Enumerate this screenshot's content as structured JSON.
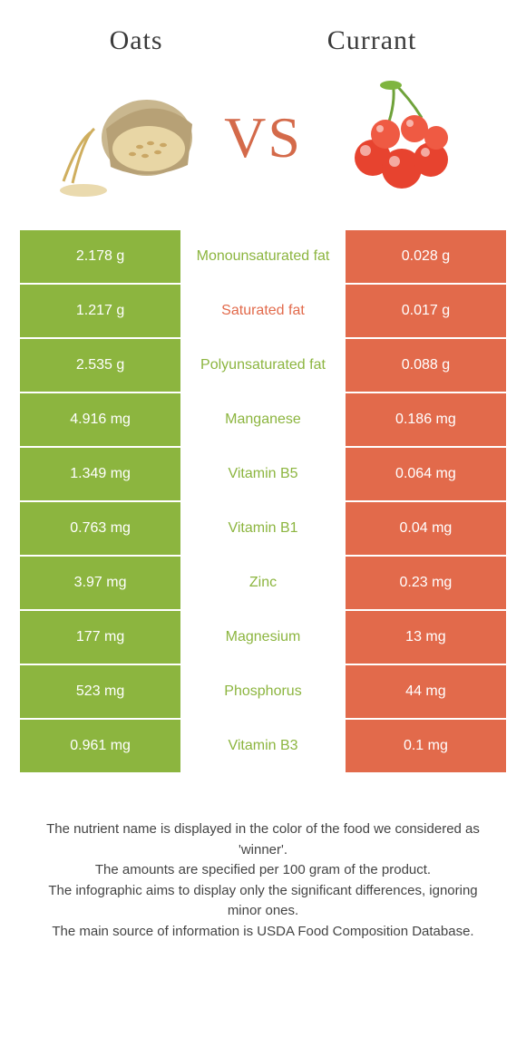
{
  "left_food": {
    "name": "Oats",
    "color": "#8cb53f"
  },
  "right_food": {
    "name": "Currant",
    "color": "#e26a4b"
  },
  "vs_label": "VS",
  "vs_color": "#d46a4a",
  "mid_bg": "#ffffff",
  "rows": [
    {
      "left": "2.178 g",
      "label": "Monounsaturated fat",
      "right": "0.028 g",
      "winner": "left"
    },
    {
      "left": "1.217 g",
      "label": "Saturated fat",
      "right": "0.017 g",
      "winner": "right"
    },
    {
      "left": "2.535 g",
      "label": "Polyunsaturated fat",
      "right": "0.088 g",
      "winner": "left"
    },
    {
      "left": "4.916 mg",
      "label": "Manganese",
      "right": "0.186 mg",
      "winner": "left"
    },
    {
      "left": "1.349 mg",
      "label": "Vitamin B5",
      "right": "0.064 mg",
      "winner": "left"
    },
    {
      "left": "0.763 mg",
      "label": "Vitamin B1",
      "right": "0.04 mg",
      "winner": "left"
    },
    {
      "left": "3.97 mg",
      "label": "Zinc",
      "right": "0.23 mg",
      "winner": "left"
    },
    {
      "left": "177 mg",
      "label": "Magnesium",
      "right": "13 mg",
      "winner": "left"
    },
    {
      "left": "523 mg",
      "label": "Phosphorus",
      "right": "44 mg",
      "winner": "left"
    },
    {
      "left": "0.961 mg",
      "label": "Vitamin B3",
      "right": "0.1 mg",
      "winner": "left"
    }
  ],
  "footer_lines": [
    "The nutrient name is displayed in the color of the food we considered as 'winner'.",
    "The amounts are specified per 100 gram of the product.",
    "The infographic aims to display only the significant differences, ignoring minor ones.",
    "The main source of information is USDA Food Composition Database."
  ]
}
